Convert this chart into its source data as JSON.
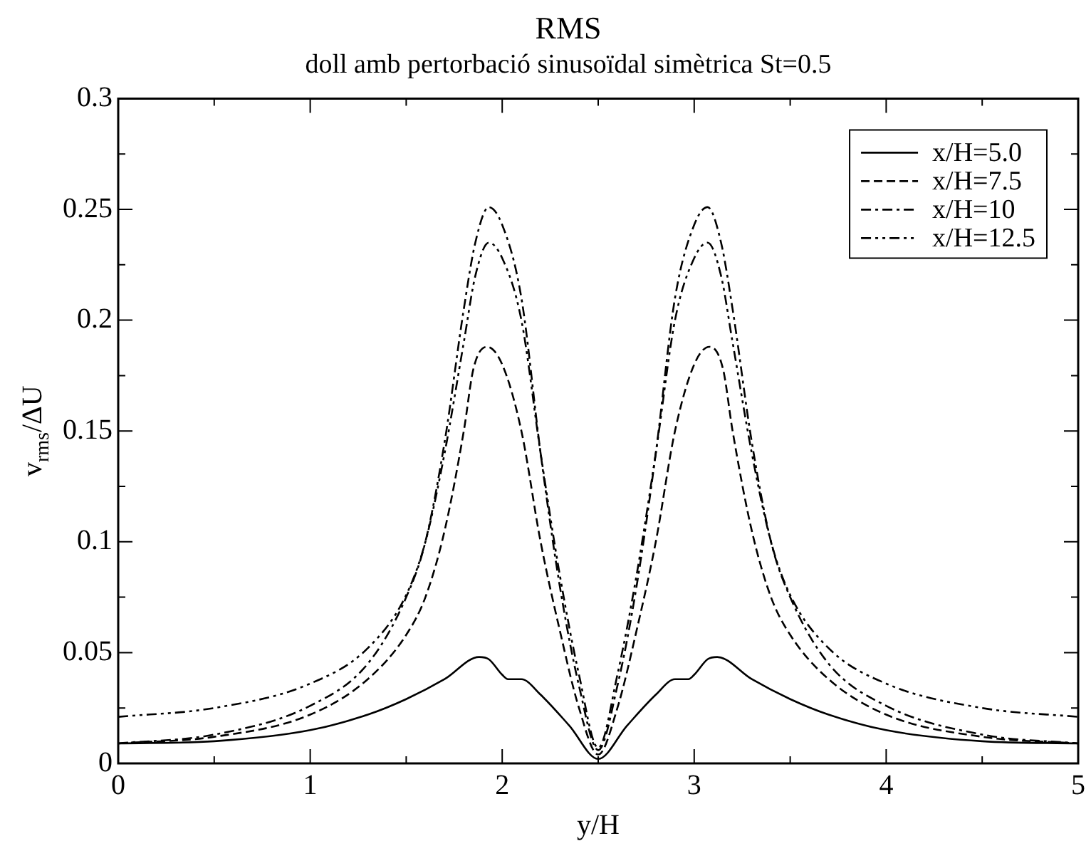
{
  "chart_data": {
    "type": "line",
    "title": "RMS",
    "subtitle": "doll amb pertorbació sinusoïdal simètrica St=0.5",
    "xlabel": "y/H",
    "ylabel": "v$_{rms}$/ΔU",
    "xlim": [
      0,
      5
    ],
    "xticks": [
      0,
      {
        "value": 0.5,
        "label": null
      },
      1,
      {
        "value": 1.5,
        "label": null
      },
      2,
      {
        "value": 2.5,
        "label": null
      },
      3,
      {
        "value": 3.5,
        "label": null
      },
      4,
      {
        "value": 4.5,
        "label": null
      },
      5
    ],
    "ylim": [
      0,
      0.3
    ],
    "yticks": [
      0,
      {
        "value": 0.025,
        "label": null
      },
      0.05,
      {
        "value": 0.075,
        "label": null
      },
      0.1,
      {
        "value": 0.125,
        "label": null
      },
      0.15,
      {
        "value": 0.175,
        "label": null
      },
      0.2,
      {
        "value": 0.225,
        "label": null
      },
      0.25,
      {
        "value": 0.275,
        "label": null
      },
      0.3
    ],
    "grid": false,
    "legend": "top right",
    "marker": "none",
    "series": [
      {
        "name": "x/H=5.0",
        "color": "#000000",
        "line_style": "solid",
        "x": [
          0,
          0.5,
          1.0,
          1.3,
          1.5,
          1.7,
          1.88,
          1.93,
          2.0,
          2.03,
          2.1,
          2.2,
          2.35,
          2.5,
          2.65,
          2.8,
          2.9,
          2.97,
          3.0,
          3.07,
          3.12,
          3.3,
          3.5,
          3.7,
          4.0,
          4.5,
          5.0
        ],
        "values": [
          0.009,
          0.01,
          0.015,
          0.022,
          0.029,
          0.038,
          0.048,
          0.047,
          0.04,
          0.038,
          0.038,
          0.031,
          0.017,
          0.002,
          0.017,
          0.031,
          0.038,
          0.038,
          0.04,
          0.047,
          0.048,
          0.038,
          0.029,
          0.022,
          0.015,
          0.01,
          0.009
        ]
      },
      {
        "name": "x/H=7.5",
        "color": "#000000",
        "line_style": "dashed",
        "x": [
          0,
          0.5,
          1.0,
          1.3,
          1.5,
          1.6,
          1.7,
          1.8,
          1.85,
          1.92,
          2.0,
          2.1,
          2.2,
          2.3,
          2.4,
          2.5,
          2.6,
          2.7,
          2.8,
          2.9,
          3.0,
          3.08,
          3.15,
          3.2,
          3.3,
          3.4,
          3.5,
          3.7,
          4.0,
          4.5,
          5.0
        ],
        "values": [
          0.009,
          0.012,
          0.022,
          0.038,
          0.058,
          0.075,
          0.105,
          0.15,
          0.178,
          0.188,
          0.18,
          0.15,
          0.1,
          0.06,
          0.025,
          0.004,
          0.025,
          0.06,
          0.1,
          0.15,
          0.18,
          0.188,
          0.178,
          0.15,
          0.105,
          0.075,
          0.058,
          0.038,
          0.022,
          0.012,
          0.009
        ]
      },
      {
        "name": "x/H=10",
        "color": "#000000",
        "line_style": "dashdot",
        "x": [
          0,
          0.5,
          1.0,
          1.3,
          1.5,
          1.6,
          1.7,
          1.8,
          1.86,
          1.93,
          2.0,
          2.1,
          2.2,
          2.3,
          2.4,
          2.5,
          2.6,
          2.7,
          2.8,
          2.9,
          3.0,
          3.07,
          3.14,
          3.2,
          3.3,
          3.4,
          3.5,
          3.7,
          4.0,
          4.5,
          5.0
        ],
        "values": [
          0.009,
          0.013,
          0.026,
          0.045,
          0.075,
          0.1,
          0.145,
          0.205,
          0.235,
          0.251,
          0.243,
          0.21,
          0.14,
          0.08,
          0.035,
          0.006,
          0.035,
          0.08,
          0.14,
          0.21,
          0.243,
          0.251,
          0.235,
          0.205,
          0.145,
          0.1,
          0.075,
          0.045,
          0.026,
          0.013,
          0.009
        ]
      },
      {
        "name": "x/H=12.5",
        "color": "#000000",
        "line_style": "dashdotdot",
        "x": [
          0,
          0.5,
          1.0,
          1.3,
          1.5,
          1.6,
          1.7,
          1.8,
          1.86,
          1.93,
          2.0,
          2.1,
          2.2,
          2.3,
          2.4,
          2.5,
          2.6,
          2.7,
          2.8,
          2.9,
          3.0,
          3.07,
          3.14,
          3.2,
          3.3,
          3.4,
          3.5,
          3.7,
          4.0,
          4.5,
          5.0
        ],
        "values": [
          0.021,
          0.025,
          0.036,
          0.052,
          0.076,
          0.1,
          0.14,
          0.19,
          0.22,
          0.235,
          0.228,
          0.2,
          0.14,
          0.085,
          0.04,
          0.007,
          0.04,
          0.085,
          0.14,
          0.2,
          0.228,
          0.235,
          0.22,
          0.19,
          0.14,
          0.1,
          0.076,
          0.052,
          0.036,
          0.025,
          0.021
        ]
      }
    ]
  }
}
